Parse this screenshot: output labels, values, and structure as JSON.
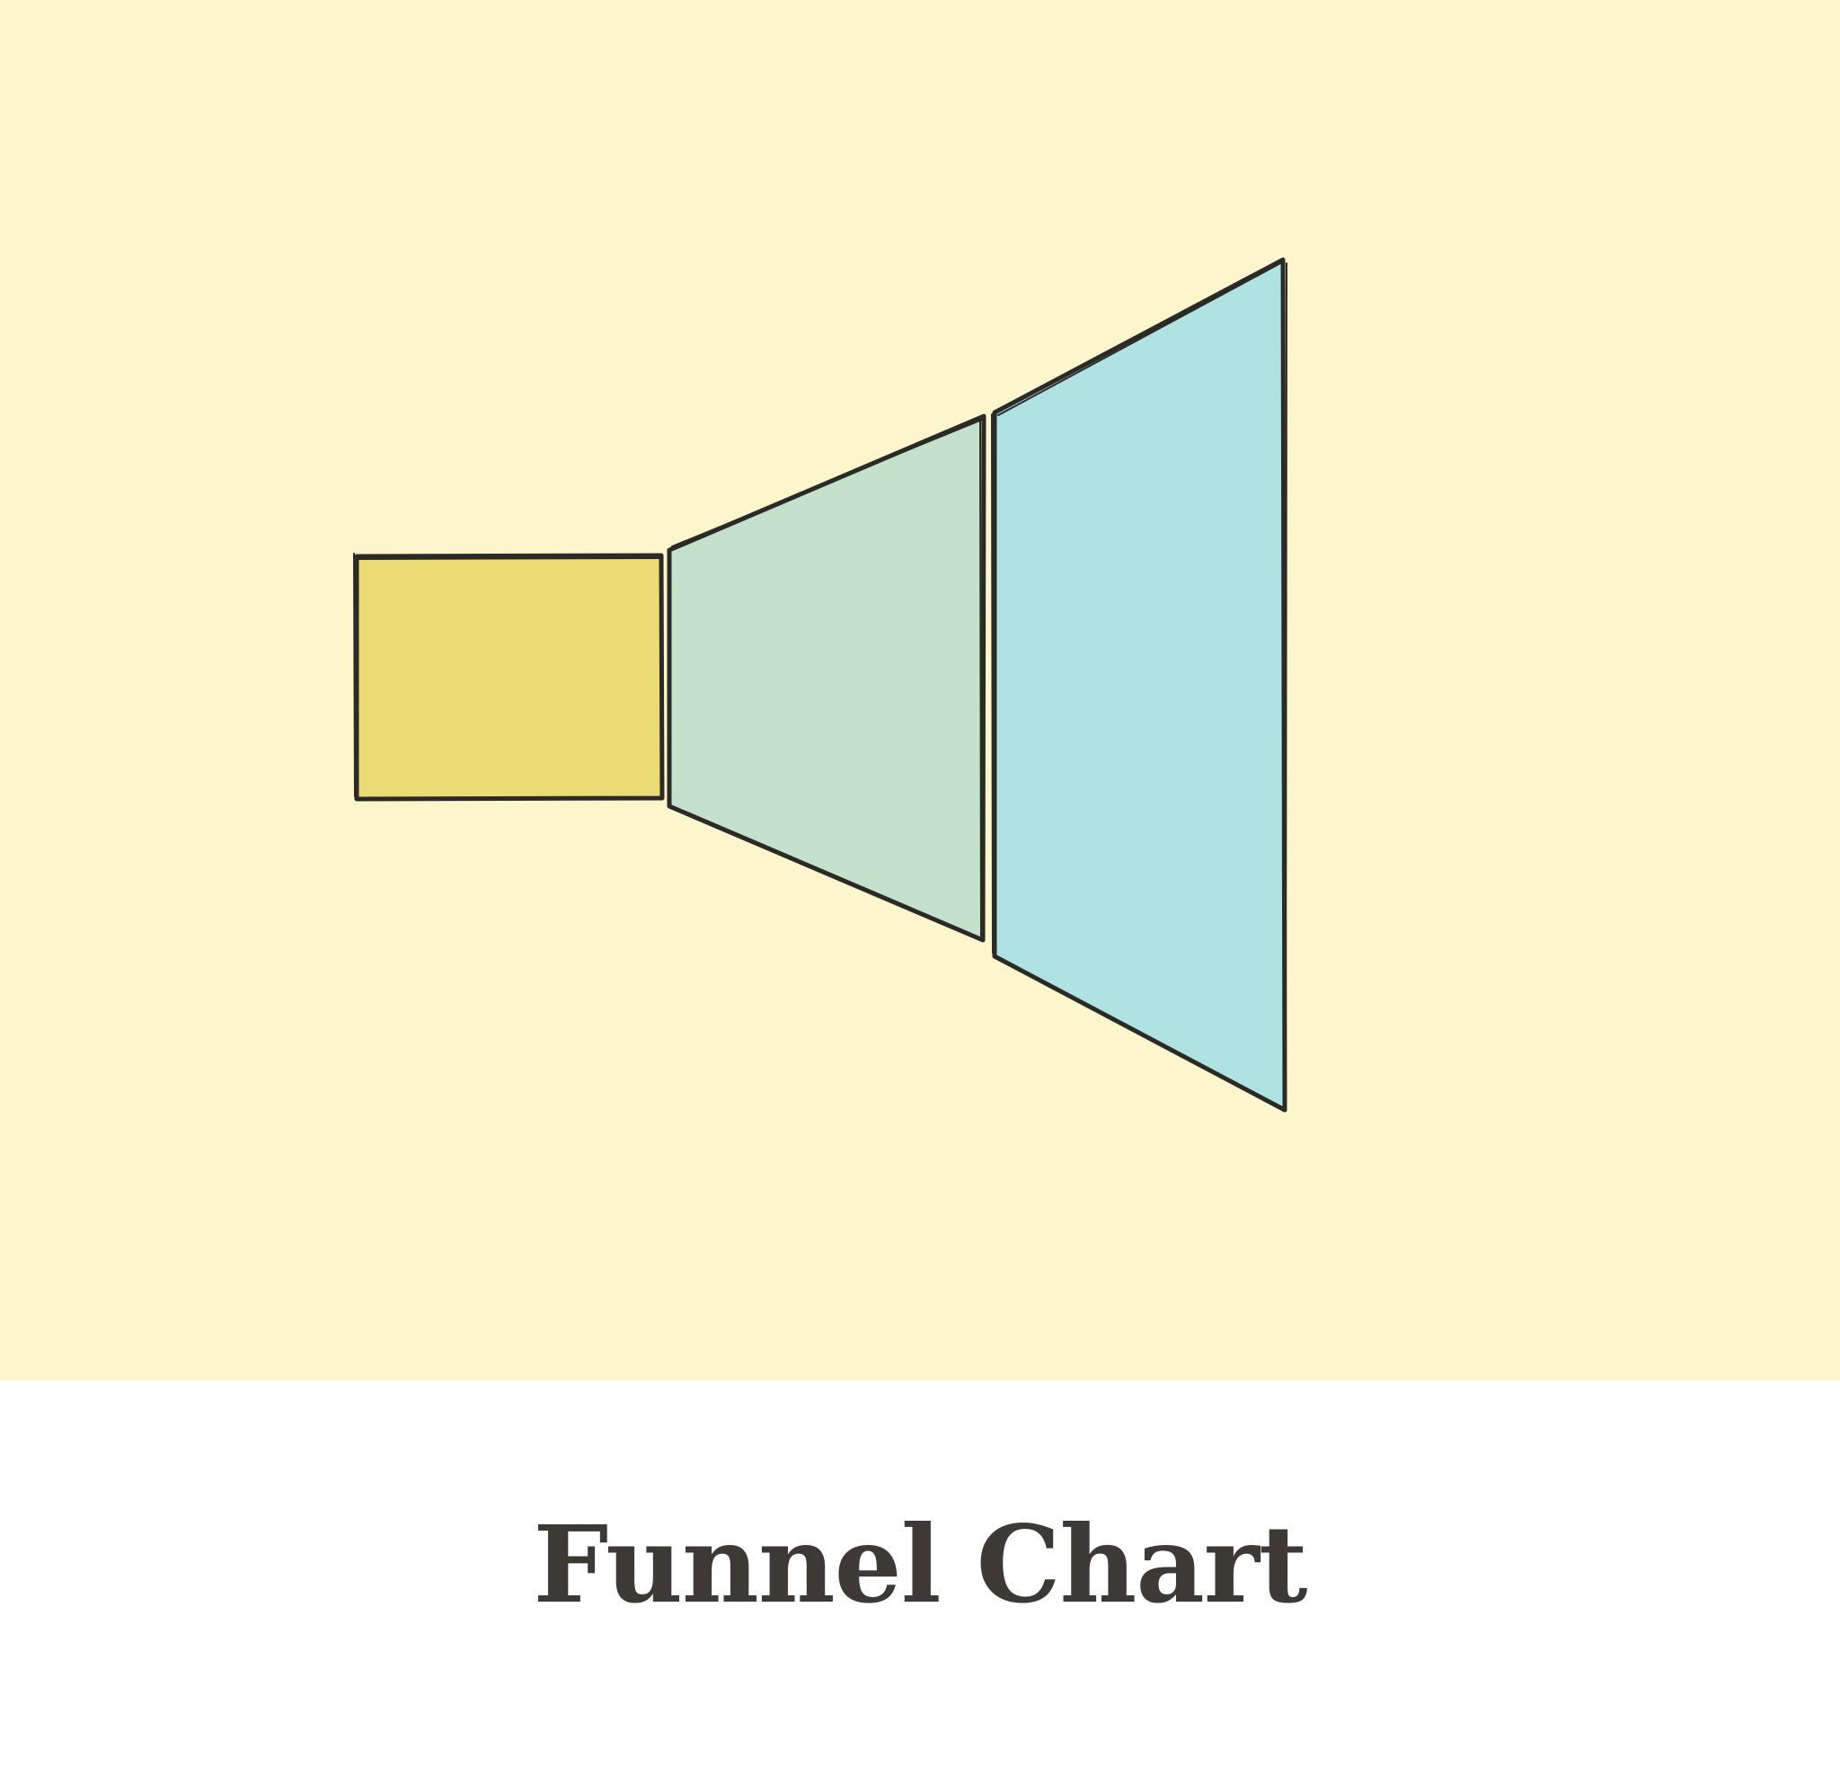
{
  "caption": {
    "title": "Funnel Chart"
  },
  "illustration": {
    "icon": "funnel-chart-icon",
    "colors": {
      "background": "#fdf5cc",
      "outline": "#2b2a26",
      "stage_1": "#eadb75",
      "stage_2": "#c4e1cc",
      "stage_3": "#aee3e2"
    }
  }
}
